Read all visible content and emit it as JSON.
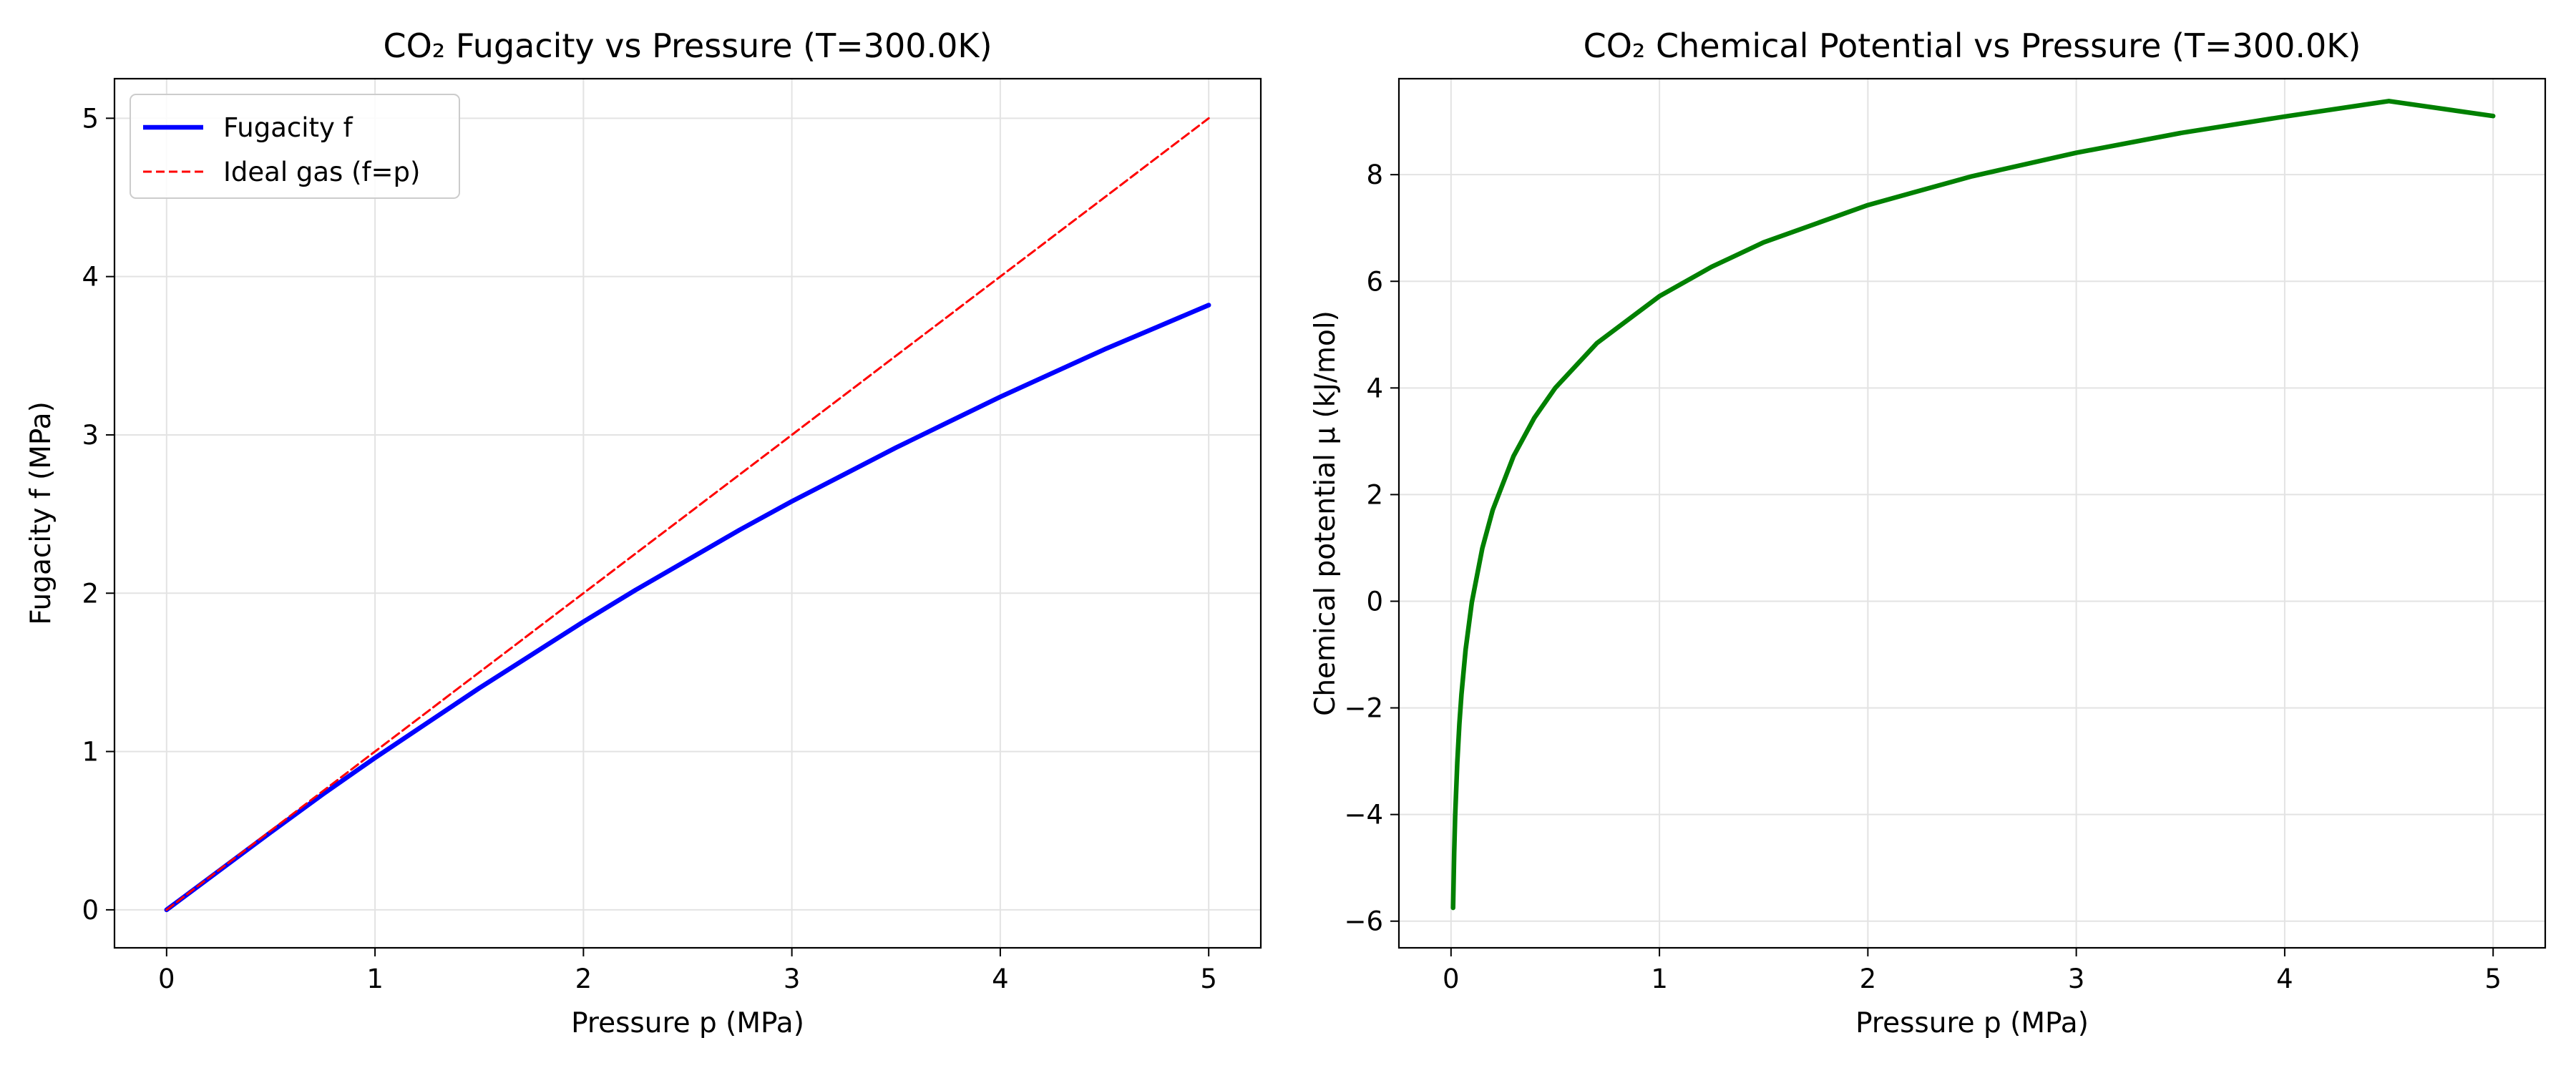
{
  "figure": {
    "background": "#ffffff"
  },
  "chart_data": [
    {
      "type": "line",
      "title": "CO₂ Fugacity vs Pressure (T=300.0K)",
      "xlabel": "Pressure p (MPa)",
      "ylabel": "Fugacity f (MPa)",
      "xlim": [
        -0.25,
        5.25
      ],
      "ylim": [
        -0.24,
        5.25
      ],
      "xticks": [
        0,
        1,
        2,
        3,
        4,
        5
      ],
      "yticks": [
        0,
        1,
        2,
        3,
        4,
        5
      ],
      "xtick_labels": [
        "0",
        "1",
        "2",
        "3",
        "4",
        "5"
      ],
      "ytick_labels": [
        "0",
        "1",
        "2",
        "3",
        "4",
        "5"
      ],
      "grid": true,
      "legend_position": "top-left",
      "series": [
        {
          "name": "Fugacity f",
          "color": "#0000ff",
          "style": "solid",
          "x": [
            0,
            0.25,
            0.5,
            0.75,
            1.0,
            1.25,
            1.5,
            1.75,
            2.0,
            2.25,
            2.5,
            2.75,
            3.0,
            3.25,
            3.5,
            3.75,
            4.0,
            4.25,
            4.5,
            4.75,
            5.0
          ],
          "y": [
            0,
            0.245,
            0.49,
            0.73,
            0.96,
            1.18,
            1.4,
            1.61,
            1.82,
            2.02,
            2.21,
            2.4,
            2.58,
            2.75,
            2.92,
            3.08,
            3.24,
            3.39,
            3.54,
            3.68,
            3.82
          ]
        },
        {
          "name": "Ideal gas (f=p)",
          "color": "#ff0000",
          "style": "dashed",
          "x": [
            0,
            5
          ],
          "y": [
            0,
            5
          ]
        }
      ]
    },
    {
      "type": "line",
      "title": "CO₂ Chemical Potential vs Pressure (T=300.0K)",
      "xlabel": "Pressure p (MPa)",
      "ylabel": "Chemical potential μ (kJ/mol)",
      "xlim": [
        -0.25,
        5.25
      ],
      "ylim": [
        -6.5,
        9.8
      ],
      "xticks": [
        0,
        1,
        2,
        3,
        4,
        5
      ],
      "yticks": [
        -6,
        -4,
        -2,
        0,
        2,
        4,
        6,
        8
      ],
      "xtick_labels": [
        "0",
        "1",
        "2",
        "3",
        "4",
        "5"
      ],
      "ytick_labels": [
        "−6",
        "−4",
        "−2",
        "0",
        "2",
        "4",
        "6",
        "8"
      ],
      "grid": true,
      "series": [
        {
          "color": "#008000",
          "style": "solid",
          "x": [
            0.01,
            0.015,
            0.02,
            0.03,
            0.04,
            0.05,
            0.07,
            0.1,
            0.15,
            0.2,
            0.3,
            0.4,
            0.5,
            0.7,
            1.0,
            1.25,
            1.5,
            2.0,
            2.5,
            3.0,
            3.5,
            4.0,
            4.5,
            5.0
          ],
          "y": [
            -5.75,
            -4.74,
            -4.03,
            -3.02,
            -2.3,
            -1.75,
            -0.91,
            -0.02,
            0.99,
            1.71,
            2.72,
            3.44,
            4.0,
            4.84,
            5.72,
            6.27,
            6.73,
            7.43,
            7.97,
            8.41,
            8.78,
            9.09,
            9.38,
            9.1
          ]
        }
      ]
    }
  ]
}
